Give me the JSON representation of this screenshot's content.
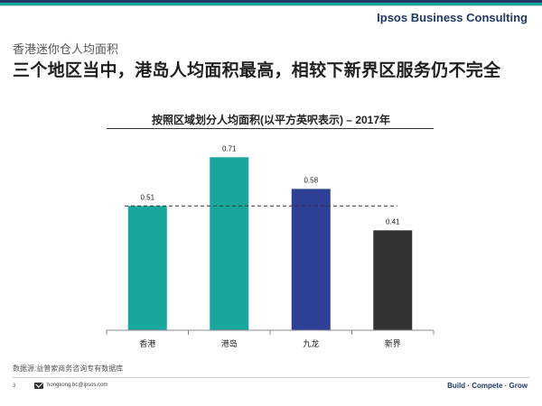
{
  "brand": "Ipsos Business Consulting",
  "subtitle": "香港迷你仓人均面积",
  "headline": "三个地区当中，港岛人均面积最高，相较下新界区服务仍不完全",
  "source": "数据源:益普索商务咨询专有数据库",
  "footer": {
    "page": "3",
    "email": "hongkong.bc@ipsos.com",
    "tagline": "Build · Compete · Grow"
  },
  "chart_data": {
    "type": "bar",
    "title": "按照区域划分人均面积(以平方英呎表示) – 2017年",
    "categories": [
      "香港",
      "港岛",
      "九龙",
      "新界"
    ],
    "values": [
      0.51,
      0.71,
      0.58,
      0.41
    ],
    "value_labels": [
      "0.51",
      "0.71",
      "0.58",
      "0.41"
    ],
    "colors": [
      "#19a69c",
      "#19a69c",
      "#2e3f96",
      "#333333"
    ],
    "reference_line": 0.51,
    "ylim": [
      0,
      0.8
    ],
    "grid": false,
    "legend": "none"
  },
  "colors": {
    "navy": "#1f3864",
    "teal": "#19a69c"
  }
}
